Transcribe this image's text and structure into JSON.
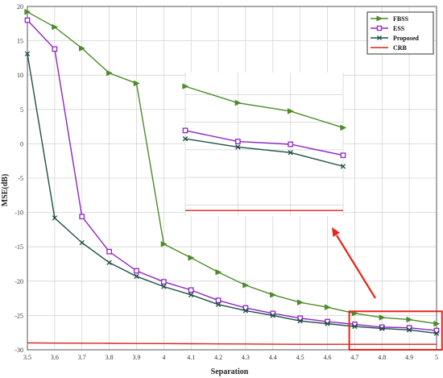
{
  "chart_data": {
    "type": "line",
    "x": [
      3.5,
      3.6,
      3.7,
      3.8,
      3.9,
      4.0,
      4.1,
      4.2,
      4.3,
      4.4,
      4.5,
      4.6,
      4.7,
      4.8,
      4.9,
      5.0
    ],
    "xlim": [
      3.5,
      5.0
    ],
    "ylim": [
      -30,
      20
    ],
    "x_ticks": [
      "3.5",
      "3.6",
      "3.7",
      "3.8",
      "3.9",
      "4",
      "4.1",
      "4.2",
      "4.3",
      "4.4",
      "4.5",
      "4.6",
      "4.7",
      "4.8",
      "4.9",
      "5"
    ],
    "y_ticks": [
      "-30",
      "-25",
      "-20",
      "-15",
      "-10",
      "-5",
      "0",
      "5",
      "10",
      "15",
      "20"
    ],
    "xlabel": "Separation",
    "ylabel": "MSE(dB)",
    "title": "",
    "grid": true,
    "legend_position": "top-right",
    "series": [
      {
        "name": "FBSS",
        "color": "#4e8a2b",
        "marker": "triangle-right",
        "values": [
          19.2,
          17.0,
          13.9,
          10.3,
          8.8,
          -14.6,
          -16.6,
          -18.7,
          -20.6,
          -22.0,
          -23.1,
          -23.8,
          -24.7,
          -25.3,
          -25.6,
          -26.2
        ]
      },
      {
        "name": "ESS",
        "color": "#8e24c4",
        "marker": "square",
        "values": [
          18.0,
          13.8,
          -10.6,
          -15.7,
          -18.5,
          -20.1,
          -21.3,
          -22.8,
          -23.9,
          -24.7,
          -25.4,
          -25.9,
          -26.3,
          -26.7,
          -26.8,
          -27.2
        ]
      },
      {
        "name": "Proposed",
        "color": "#1e4f46",
        "marker": "x",
        "values": [
          13.1,
          -10.8,
          -14.4,
          -17.3,
          -19.3,
          -20.8,
          -22.0,
          -23.4,
          -24.3,
          -25.0,
          -25.8,
          -26.2,
          -26.6,
          -26.9,
          -27.1,
          -27.6
        ]
      },
      {
        "name": "CRB",
        "color": "#d9201a",
        "marker": "none",
        "values": [
          -29.0,
          -29.02,
          -29.04,
          -29.06,
          -29.08,
          -29.1,
          -29.12,
          -29.14,
          -29.16,
          -29.18,
          -29.2,
          -29.2,
          -29.2,
          -29.2,
          -29.2,
          -29.2
        ]
      }
    ],
    "inset": {
      "x_range": [
        4.7,
        5.0
      ],
      "y_range": [
        -29.4,
        -24.2
      ]
    },
    "highlight_box": {
      "x_range": [
        4.68,
        5.02
      ],
      "y_range": [
        -30,
        -24.4
      ]
    }
  }
}
